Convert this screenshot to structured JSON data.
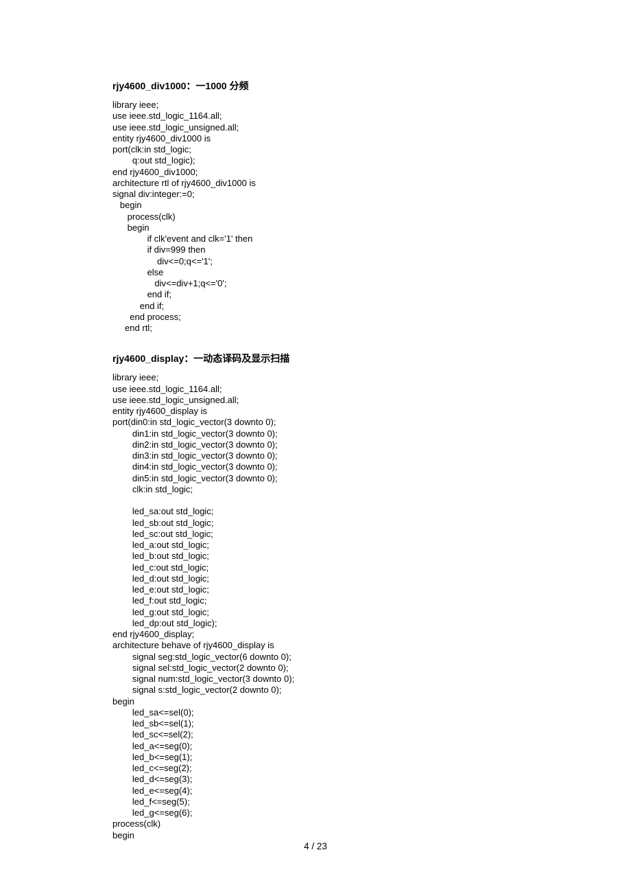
{
  "section1": {
    "heading": "rjy4600_div1000：一1000 分频",
    "code": "library ieee;\nuse ieee.std_logic_1164.all;\nuse ieee.std_logic_unsigned.all;\nentity rjy4600_div1000 is\nport(clk:in std_logic;\n        q:out std_logic);\nend rjy4600_div1000;\narchitecture rtl of rjy4600_div1000 is\nsignal div:integer:=0;\n   begin\n      process(clk)\n      begin\n              if clk'event and clk='1' then\n              if div=999 then\n                  div<=0;q<='1';\n              else\n                 div<=div+1;q<='0';\n              end if;\n           end if;\n       end process;\n     end rtl;"
  },
  "section2": {
    "heading": "rjy4600_display：一动态译码及显示扫描",
    "code": "library ieee;\nuse ieee.std_logic_1164.all;\nuse ieee.std_logic_unsigned.all;\nentity rjy4600_display is\nport(din0:in std_logic_vector(3 downto 0);\n        din1:in std_logic_vector(3 downto 0);\n        din2:in std_logic_vector(3 downto 0);\n        din3:in std_logic_vector(3 downto 0);\n        din4:in std_logic_vector(3 downto 0);\n        din5:in std_logic_vector(3 downto 0);\n        clk:in std_logic;\n\n        led_sa:out std_logic;\n        led_sb:out std_logic;\n        led_sc:out std_logic;\n        led_a:out std_logic;\n        led_b:out std_logic;\n        led_c:out std_logic;\n        led_d:out std_logic;\n        led_e:out std_logic;\n        led_f:out std_logic;\n        led_g:out std_logic;\n        led_dp:out std_logic);\nend rjy4600_display;\narchitecture behave of rjy4600_display is\n        signal seg:std_logic_vector(6 downto 0);\n        signal sel:std_logic_vector(2 downto 0);\n        signal num:std_logic_vector(3 downto 0);\n        signal s:std_logic_vector(2 downto 0);\nbegin\n        led_sa<=sel(0);\n        led_sb<=sel(1);\n        led_sc<=sel(2);\n        led_a<=seg(0);\n        led_b<=seg(1);\n        led_c<=seg(2);\n        led_d<=seg(3);\n        led_e<=seg(4);\n        led_f<=seg(5);\n        led_g<=seg(6);\nprocess(clk)\nbegin"
  },
  "pageNumber": "4  / 23"
}
